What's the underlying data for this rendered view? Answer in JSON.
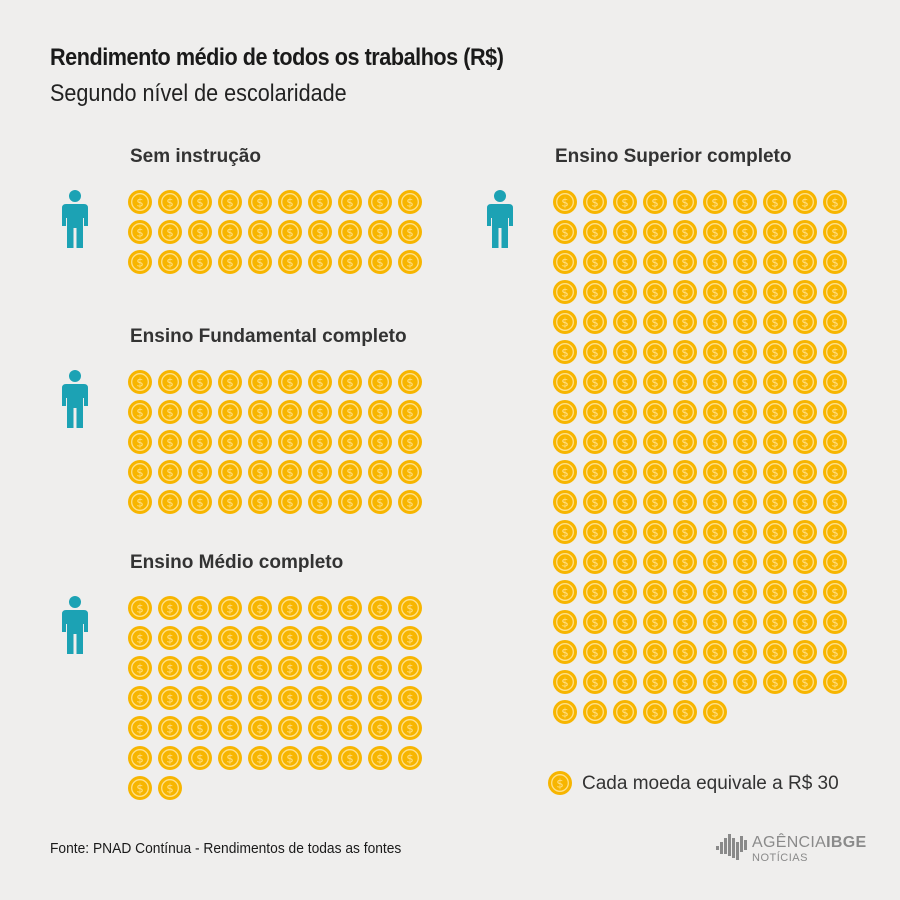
{
  "chart_data": {
    "type": "pictogram",
    "title": "Rendimento médio de todos os trabalhos (R$)",
    "subtitle": "Segundo nível de escolaridade",
    "unit_value": 30,
    "unit_label": "Cada moeda equivale a R$ 30",
    "categories": [
      "Sem instrução",
      "Ensino Fundamental completo",
      "Ensino Médio completo",
      "Ensino Superior completo"
    ],
    "coins": [
      30,
      50,
      62,
      176
    ],
    "values": [
      900,
      1500,
      1860,
      5280
    ],
    "colors": {
      "coin": "#f7b500",
      "coin_edge": "#f2a300",
      "coin_symbol": "#ffe08a",
      "person": "#1ca2b4"
    }
  },
  "footer": {
    "source": "Fonte: PNAD Contínua - Rendimentos de todas as fontes",
    "logo_main_1": "AGÊNCIA",
    "logo_main_2": "IBGE",
    "logo_sub": "NOTÍCIAS"
  }
}
